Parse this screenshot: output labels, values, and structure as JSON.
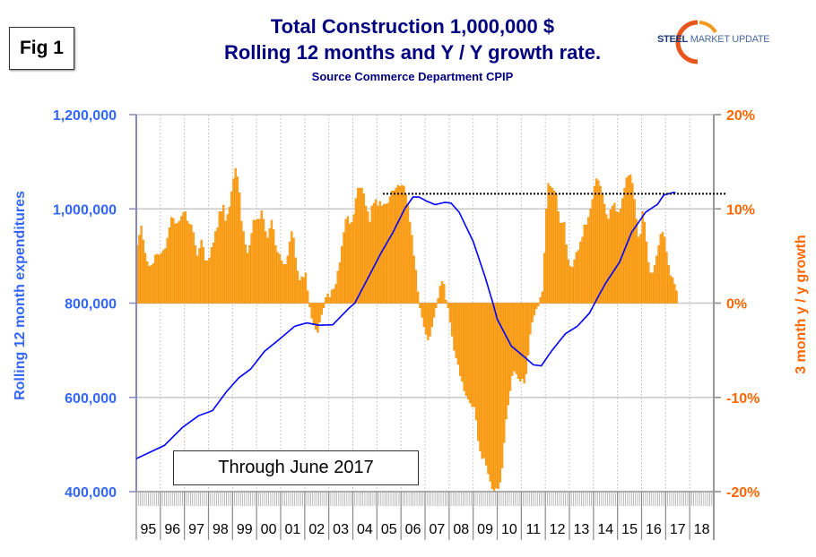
{
  "figure_label": "Fig 1",
  "logo": {
    "text_bold": "STEEL",
    "text_rest": " MARKET UPDATE"
  },
  "note": "Through June 2017",
  "colors": {
    "bars": "#ffa726",
    "bar_edge": "#f08c00",
    "line": "#0000ff",
    "left_axis": "#3366ff",
    "right_axis": "#ff6600",
    "title": "#000080"
  },
  "chart_data": {
    "type": "bar+line",
    "title": "Total Construction 1,000,000 $",
    "subtitle": "Rolling 12 months and Y / Y growth rate.",
    "source": "Source Commerce Department CPIP",
    "ylabel_left": "Rolling 12 month expenditures",
    "ylabel_right": "3 month y / y growth",
    "ylim_left": [
      400000,
      1200000
    ],
    "ylim_right": [
      -20,
      20
    ],
    "yticks_left": [
      "1,200,000",
      "1,000,000",
      "800,000",
      "600,000",
      "400,000"
    ],
    "yticks_right": [
      "20%",
      "10%",
      "0%",
      "-10%",
      "-20%"
    ],
    "xticks": [
      "95",
      "96",
      "97",
      "98",
      "99",
      "00",
      "01",
      "02",
      "03",
      "04",
      "05",
      "06",
      "07",
      "08",
      "09",
      "10",
      "11",
      "12",
      "13",
      "14",
      "15",
      "16",
      "17",
      "18"
    ],
    "x_range": [
      "1995-01",
      "2018-12"
    ],
    "grid": "horizontal at major ticks, vertical dotted at years",
    "bars": {
      "start": "1995-01",
      "frequency": "monthly",
      "unit": "%",
      "values": [
        6.1,
        7.2,
        8.2,
        6.7,
        5.3,
        4.4,
        3.9,
        4.0,
        4.2,
        5.1,
        5.2,
        5.1,
        5.3,
        5.6,
        5.8,
        6.9,
        8.0,
        9.1,
        9.0,
        8.4,
        8.5,
        8.7,
        9.2,
        9.6,
        9.7,
        8.7,
        8.4,
        8.3,
        7.5,
        6.1,
        5.0,
        5.8,
        6.7,
        5.9,
        4.5,
        4.5,
        4.8,
        5.9,
        6.4,
        7.6,
        8.0,
        9.7,
        9.7,
        10.4,
        8.7,
        9.4,
        10.2,
        11.8,
        13.2,
        14.3,
        13.4,
        11.7,
        8.7,
        7.6,
        6.2,
        5.3,
        6.1,
        7.4,
        8.8,
        8.8,
        8.9,
        8.9,
        9.8,
        8.9,
        7.6,
        6.9,
        7.9,
        8.8,
        7.8,
        6.1,
        5.4,
        5.2,
        4.5,
        4.1,
        4.1,
        5.0,
        6.5,
        7.6,
        6.9,
        4.8,
        3.4,
        2.4,
        2.8,
        2.7,
        3.2,
        1.3,
        -0.4,
        -1.6,
        -2.3,
        -2.8,
        -3.1,
        -2.0,
        -1.2,
        -0.5,
        0.6,
        1.0,
        0.6,
        1.4,
        1.5,
        2.0,
        3.4,
        4.3,
        6.0,
        7.5,
        8.9,
        9.2,
        8.4,
        8.6,
        9.4,
        11.1,
        12.2,
        12.2,
        12.2,
        11.6,
        10.3,
        9.7,
        8.6,
        10.3,
        10.6,
        11.0,
        10.3,
        10.8,
        10.3,
        10.5,
        10.5,
        10.6,
        11.3,
        11.9,
        11.9,
        12.2,
        12.5,
        12.4,
        12.5,
        12.4,
        11.5,
        10.5,
        8.6,
        7.2,
        5.0,
        3.5,
        1.2,
        -0.5,
        -1.5,
        -2.5,
        -3.3,
        -3.9,
        -3.5,
        -2.5,
        -1.5,
        -0.5,
        0.5,
        1.8,
        2.3,
        2.0,
        0.3,
        -0.5,
        -2.0,
        -3.5,
        -5.0,
        -5.8,
        -6.5,
        -7.7,
        -8.3,
        -9.3,
        -9.8,
        -10.2,
        -10.6,
        -11.0,
        -11.0,
        -12.4,
        -14.6,
        -15.7,
        -16.5,
        -16.4,
        -17.2,
        -18.1,
        -18.9,
        -19.7,
        -20.0,
        -19.6,
        -19.7,
        -19.0,
        -17.5,
        -14.8,
        -12.3,
        -10.8,
        -9.3,
        -7.7,
        -7.2,
        -7.5,
        -8.0,
        -8.3,
        -8.0,
        -8.5,
        -7.5,
        -5.5,
        -3.3,
        -2.0,
        -1.3,
        -0.6,
        -0.3,
        0.6,
        1.2,
        5.3,
        10.0,
        12.7,
        12.4,
        12.2,
        11.9,
        11.6,
        9.7,
        8.5,
        8.5,
        8.6,
        6.2,
        4.6,
        3.9,
        3.8,
        4.6,
        5.4,
        5.6,
        6.5,
        7.0,
        8.3,
        8.3,
        9.1,
        10.0,
        11.0,
        12.4,
        13.2,
        13.0,
        12.4,
        11.6,
        10.5,
        9.4,
        8.9,
        9.9,
        10.3,
        10.6,
        9.7,
        9.6,
        10.0,
        11.1,
        12.2,
        13.3,
        13.5,
        13.6,
        12.7,
        11.0,
        8.9,
        7.0,
        7.3,
        9.7,
        8.6,
        6.5,
        4.3,
        3.2,
        3.2,
        4.0,
        5.0,
        6.1,
        7.3,
        7.5,
        7.0,
        5.4,
        4.0,
        2.9,
        2.7,
        2.0,
        1.3
      ]
    },
    "line": {
      "unit": "$ millions",
      "points": [
        [
          "1995-01",
          470000
        ],
        [
          "1996-03",
          498000
        ],
        [
          "1996-12",
          536000
        ],
        [
          "1997-08",
          561000
        ],
        [
          "1998-03",
          572000
        ],
        [
          "1998-10",
          612000
        ],
        [
          "1999-04",
          641000
        ],
        [
          "1999-10",
          660000
        ],
        [
          "2000-05",
          698000
        ],
        [
          "2000-12",
          722000
        ],
        [
          "2001-08",
          751000
        ],
        [
          "2002-02",
          758000
        ],
        [
          "2002-08",
          753000
        ],
        [
          "2003-03",
          754000
        ],
        [
          "2003-11",
          789000
        ],
        [
          "2004-02",
          800000
        ],
        [
          "2004-08",
          849000
        ],
        [
          "2005-03",
          906000
        ],
        [
          "2005-09",
          950000
        ],
        [
          "2006-03",
          1001000
        ],
        [
          "2006-07",
          1025000
        ],
        [
          "2006-10",
          1025000
        ],
        [
          "2007-02",
          1016000
        ],
        [
          "2007-06",
          1009000
        ],
        [
          "2007-11",
          1014000
        ],
        [
          "2008-02",
          1012000
        ],
        [
          "2008-06",
          993000
        ],
        [
          "2009-01",
          931000
        ],
        [
          "2009-07",
          855000
        ],
        [
          "2009-11",
          798000
        ],
        [
          "2010-01",
          766000
        ],
        [
          "2010-08",
          709000
        ],
        [
          "2011-03",
          684000
        ],
        [
          "2011-07",
          669000
        ],
        [
          "2011-11",
          667000
        ],
        [
          "2012-04",
          698000
        ],
        [
          "2012-11",
          735000
        ],
        [
          "2013-05",
          751000
        ],
        [
          "2013-11",
          779000
        ],
        [
          "2014-03",
          811000
        ],
        [
          "2014-07",
          842000
        ],
        [
          "2015-02",
          887000
        ],
        [
          "2015-08",
          950000
        ],
        [
          "2016-03",
          993000
        ],
        [
          "2016-09",
          1010000
        ],
        [
          "2016-12",
          1029000
        ],
        [
          "2017-05",
          1035000
        ],
        [
          "2017-06",
          1034000
        ]
      ]
    },
    "reference_line": {
      "style": "dotted",
      "value": 1032000,
      "from": "2005-04"
    }
  }
}
